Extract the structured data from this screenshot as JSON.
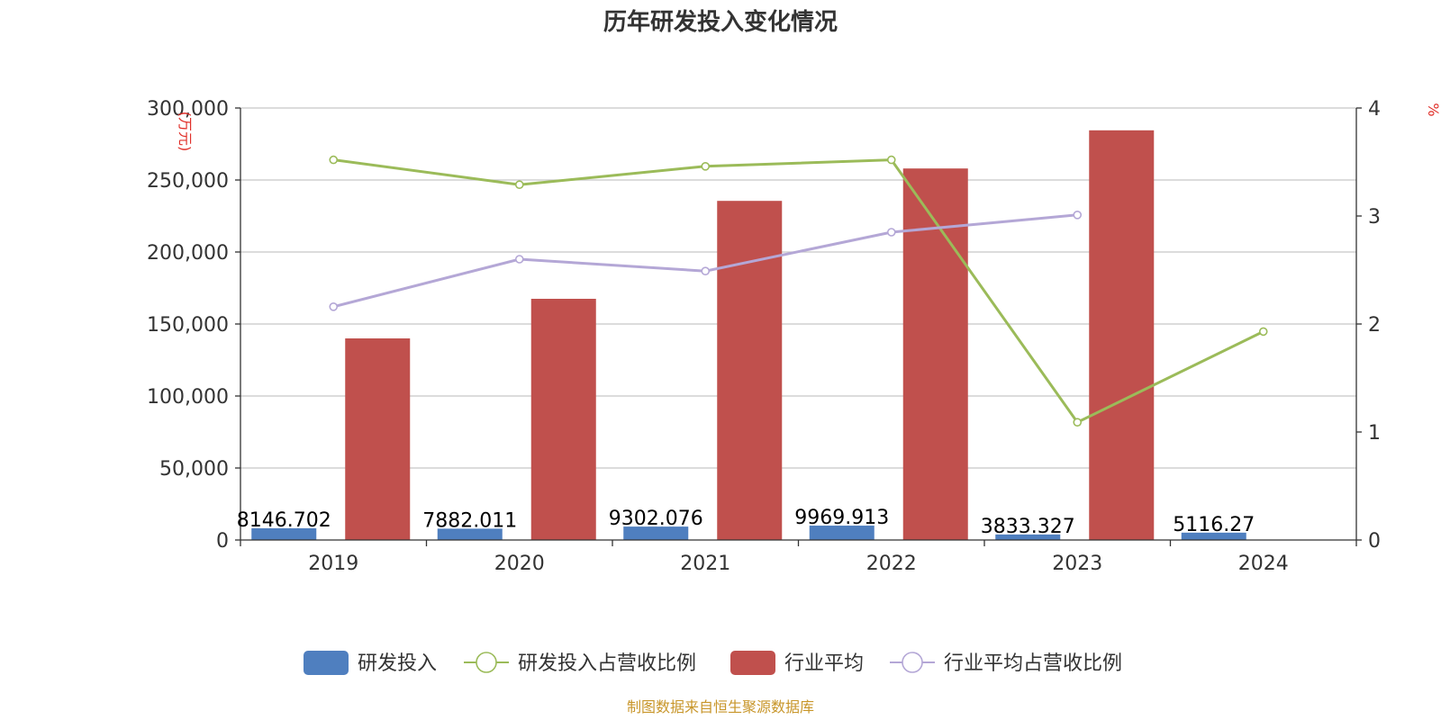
{
  "chart_data": {
    "type": "bar",
    "title": "历年研发投入变化情况",
    "categories": [
      "2019",
      "2020",
      "2021",
      "2022",
      "2023",
      "2024"
    ],
    "y_left": {
      "label": "(万元)",
      "min": 0,
      "max": 300000,
      "ticks": [
        "0",
        "50,000",
        "100,000",
        "150,000",
        "200,000",
        "250,000",
        "300,000"
      ]
    },
    "y_right": {
      "label": "%",
      "min": 0,
      "max": 4,
      "ticks": [
        "0",
        "1",
        "2",
        "3",
        "4"
      ]
    },
    "series": [
      {
        "name": "研发投入",
        "type": "bar",
        "axis": "left",
        "color": "#4f7fbf",
        "values": [
          8146.702,
          7882.011,
          9302.076,
          9969.913,
          3833.327,
          5116.27
        ],
        "labels": [
          "8146.702",
          "7882.011",
          "9302.076",
          "9969.913",
          "3833.327",
          "5116.27"
        ]
      },
      {
        "name": "研发投入占营收比例",
        "type": "line",
        "axis": "right",
        "color": "#9bbb59",
        "values": [
          3.52,
          3.29,
          3.46,
          3.52,
          1.09,
          1.93
        ]
      },
      {
        "name": "行业平均",
        "type": "bar",
        "axis": "left",
        "color": "#c0504d",
        "values": [
          140000,
          167500,
          235500,
          258000,
          284500,
          null
        ]
      },
      {
        "name": "行业平均占营收比例",
        "type": "line",
        "axis": "right",
        "color": "#b4a7d6",
        "values": [
          2.16,
          2.6,
          2.49,
          2.85,
          3.01,
          null
        ]
      }
    ],
    "grid": true,
    "legend_position": "bottom"
  },
  "source": "制图数据来自恒生聚源数据库",
  "colors": {
    "unit_label": "#e0302a",
    "source_text": "#c8962a",
    "grid": "#c8c8c8",
    "axis": "#333333"
  }
}
